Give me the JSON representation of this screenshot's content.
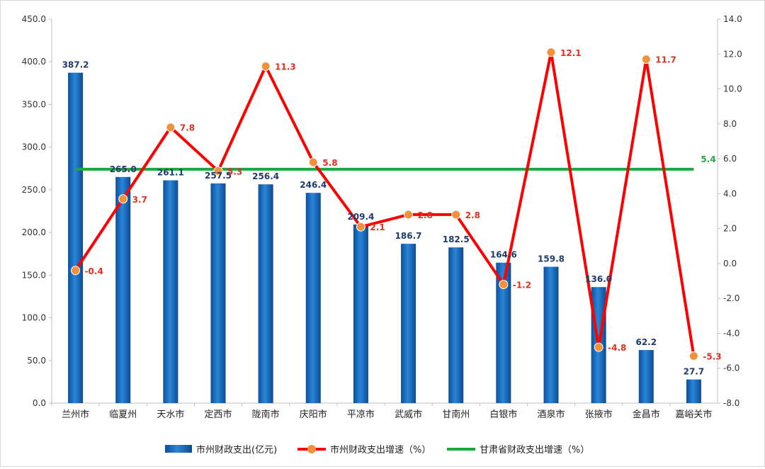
{
  "chart_data": {
    "type": "bar",
    "title": "",
    "categories": [
      "兰州市",
      "临夏州",
      "天水市",
      "定西市",
      "陇南市",
      "庆阳市",
      "平凉市",
      "武威市",
      "甘南州",
      "白银市",
      "酒泉市",
      "张掖市",
      "金昌市",
      "嘉峪关市"
    ],
    "y_left": {
      "min": 0,
      "max": 450,
      "step": 50,
      "tick_labels": [
        "0.0",
        "50.0",
        "100.0",
        "150.0",
        "200.0",
        "250.0",
        "300.0",
        "350.0",
        "400.0",
        "450.0"
      ]
    },
    "y_right": {
      "min": -8,
      "max": 14,
      "step": 2,
      "tick_labels": [
        "-8.0",
        "-6.0",
        "-4.0",
        "-2.0",
        "0.0",
        "2.0",
        "4.0",
        "6.0",
        "8.0",
        "10.0",
        "12.0",
        "14.0"
      ]
    },
    "series": [
      {
        "name": "市州财政支出(亿元)",
        "type": "bar",
        "axis": "left",
        "color": "#1f6fbf",
        "values": [
          387.2,
          265.0,
          261.1,
          257.5,
          256.4,
          246.4,
          209.4,
          186.7,
          182.5,
          164.6,
          159.8,
          136.0,
          62.2,
          27.7
        ],
        "labels": [
          "387.2",
          "265.0",
          "261.1",
          "257.5",
          "256.4",
          "246.4",
          "209.4",
          "186.7",
          "182.5",
          "164.6",
          "159.8",
          "136.0",
          "62.2",
          "27.7"
        ]
      },
      {
        "name": "市州财政支出增速（%）",
        "type": "line",
        "axis": "right",
        "color": "#ff0000",
        "marker_color": "#f0923c",
        "values": [
          -0.4,
          3.7,
          7.8,
          5.3,
          11.3,
          5.8,
          2.1,
          2.8,
          2.8,
          -1.2,
          12.1,
          -4.8,
          11.7,
          -5.3
        ],
        "labels": [
          "-0.4",
          "3.7",
          "7.8",
          "5.3",
          "11.3",
          "5.8",
          "2.1",
          "2.8",
          "2.8",
          "-1.2",
          "12.1",
          "-4.8",
          "11.7",
          "-5.3"
        ]
      },
      {
        "name": "甘肃省财政支出增速（%）",
        "type": "line",
        "axis": "right",
        "color": "#1aaa3c",
        "value": 5.4,
        "label": "5.4"
      }
    ],
    "legend": "bottom",
    "grid": false
  }
}
